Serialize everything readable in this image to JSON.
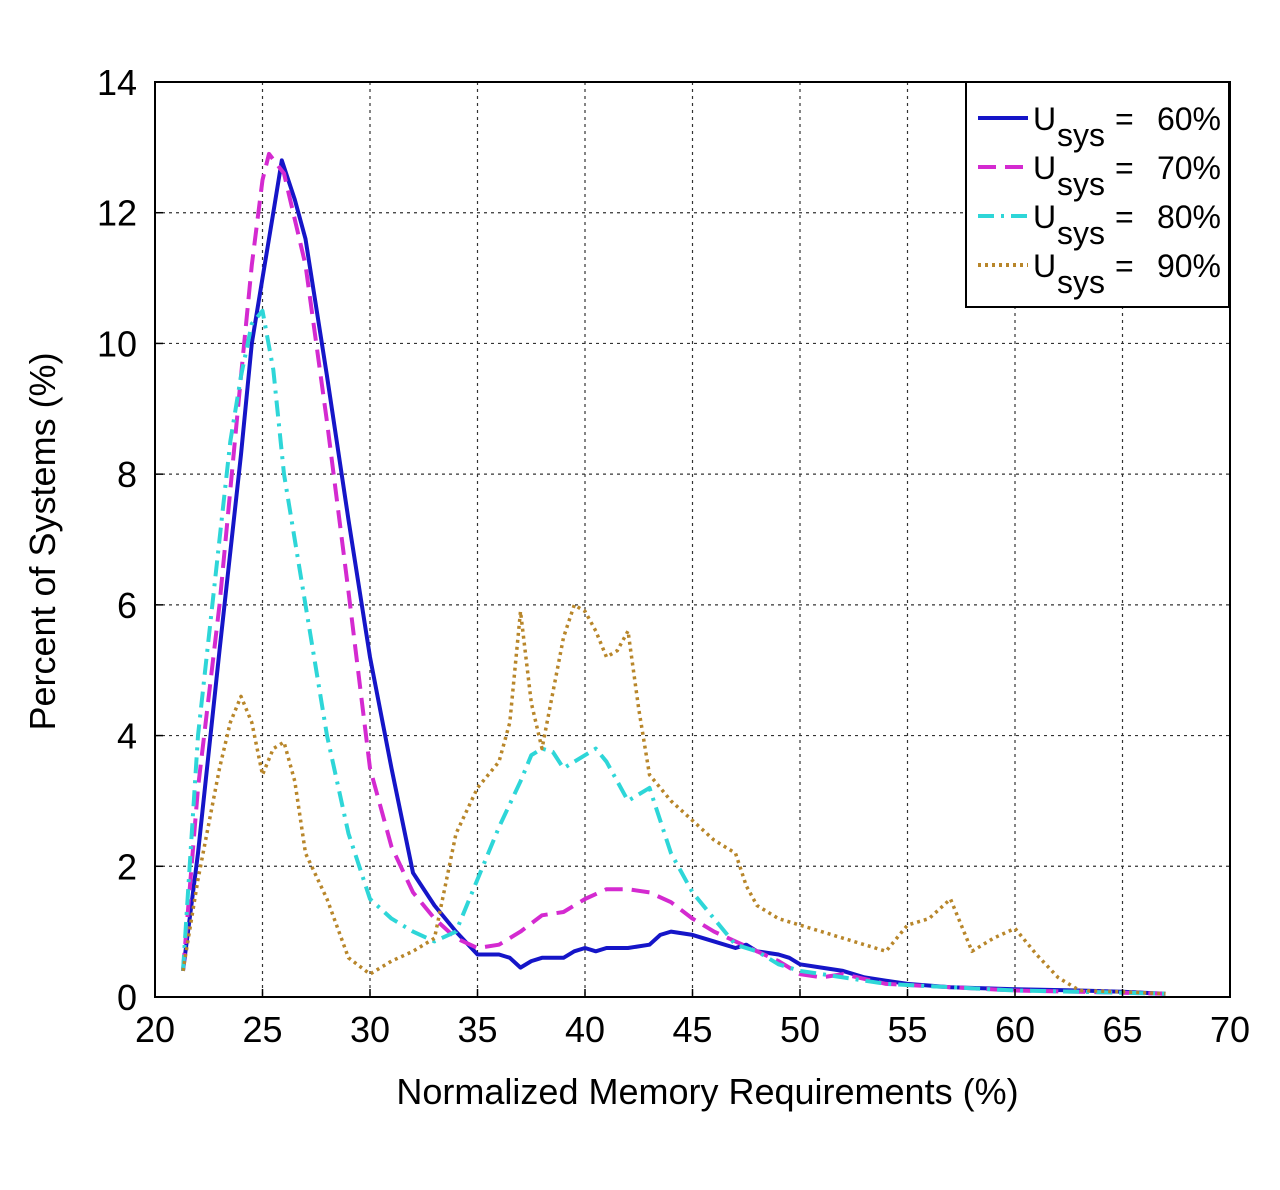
{
  "chart_data": {
    "type": "line",
    "title": "",
    "xlabel": "Normalized Memory Requirements (%)",
    "ylabel": "Percent of Systems (%)",
    "xlim": [
      20,
      70
    ],
    "ylim": [
      0,
      14
    ],
    "xticks": [
      20,
      25,
      30,
      35,
      40,
      45,
      50,
      55,
      60,
      65,
      70
    ],
    "yticks": [
      0,
      2,
      4,
      6,
      8,
      10,
      12,
      14
    ],
    "grid": true,
    "legend_position": "top-right",
    "series": [
      {
        "name": "60%",
        "legend_symbol": "U",
        "legend_subscript": "sys",
        "legend_eq": "=",
        "color": "#1515c8",
        "style": "solid",
        "x": [
          21.3,
          22.0,
          23.0,
          24.0,
          24.5,
          25.0,
          25.5,
          25.9,
          26.5,
          27.0,
          28.0,
          29.0,
          30.0,
          31.0,
          32.0,
          32.2,
          33.0,
          34.0,
          35.0,
          36.0,
          36.5,
          37.0,
          37.5,
          38.0,
          39.0,
          39.5,
          40.0,
          40.5,
          41.0,
          41.5,
          42.0,
          43.0,
          43.5,
          44.0,
          45.0,
          46.0,
          47.0,
          47.5,
          48.0,
          49.0,
          49.5,
          50.0,
          51.0,
          52.0,
          53.0,
          54.0,
          55.0,
          57.0,
          60.0,
          63.0,
          65.0,
          67.0
        ],
        "y": [
          0.4,
          2.2,
          5.3,
          8.3,
          10.0,
          11.0,
          12.0,
          12.8,
          12.2,
          11.6,
          9.5,
          7.3,
          5.2,
          3.5,
          1.9,
          1.8,
          1.4,
          1.0,
          0.65,
          0.65,
          0.6,
          0.45,
          0.55,
          0.6,
          0.6,
          0.7,
          0.75,
          0.7,
          0.75,
          0.75,
          0.75,
          0.8,
          0.95,
          1.0,
          0.95,
          0.85,
          0.75,
          0.8,
          0.7,
          0.65,
          0.6,
          0.5,
          0.45,
          0.4,
          0.3,
          0.25,
          0.2,
          0.15,
          0.12,
          0.1,
          0.08,
          0.05
        ]
      },
      {
        "name": "70%",
        "legend_symbol": "U",
        "legend_subscript": "sys",
        "legend_eq": "=",
        "color": "#d42ad0",
        "style": "dashed",
        "x": [
          21.3,
          22.0,
          23.0,
          24.0,
          24.5,
          25.0,
          25.3,
          26.0,
          27.0,
          28.0,
          29.0,
          30.0,
          31.0,
          32.0,
          33.0,
          34.0,
          35.0,
          36.0,
          37.0,
          38.0,
          39.0,
          40.0,
          41.0,
          42.0,
          43.0,
          44.0,
          45.0,
          46.0,
          47.0,
          48.0,
          49.0,
          50.0,
          51.0,
          52.0,
          54.0,
          57.0,
          60.0,
          63.0,
          67.0
        ],
        "y": [
          0.4,
          3.2,
          6.0,
          9.5,
          11.2,
          12.5,
          12.9,
          12.6,
          11.2,
          8.8,
          6.2,
          3.5,
          2.3,
          1.6,
          1.2,
          0.9,
          0.75,
          0.8,
          1.0,
          1.25,
          1.3,
          1.5,
          1.65,
          1.65,
          1.6,
          1.45,
          1.2,
          1.0,
          0.85,
          0.7,
          0.55,
          0.35,
          0.3,
          0.35,
          0.2,
          0.15,
          0.1,
          0.08,
          0.05
        ]
      },
      {
        "name": "80%",
        "legend_symbol": "U",
        "legend_subscript": "sys",
        "legend_eq": "=",
        "color": "#2ed6d8",
        "style": "dashdot",
        "x": [
          21.3,
          22.0,
          23.0,
          23.5,
          24.0,
          24.5,
          25.0,
          25.5,
          26.0,
          27.0,
          28.0,
          29.0,
          30.0,
          31.0,
          32.0,
          33.0,
          34.0,
          35.0,
          36.0,
          37.0,
          37.5,
          38.0,
          38.5,
          39.0,
          40.0,
          40.5,
          41.0,
          42.0,
          43.0,
          44.0,
          45.0,
          46.0,
          47.0,
          48.0,
          49.0,
          50.0,
          51.0,
          52.0,
          54.0,
          57.0,
          60.0,
          63.0,
          67.0
        ],
        "y": [
          0.4,
          4.0,
          7.0,
          8.5,
          9.5,
          10.3,
          10.5,
          9.6,
          8.0,
          6.0,
          4.0,
          2.5,
          1.5,
          1.2,
          1.0,
          0.85,
          1.0,
          1.8,
          2.6,
          3.3,
          3.7,
          3.8,
          3.75,
          3.5,
          3.7,
          3.8,
          3.6,
          3.0,
          3.2,
          2.2,
          1.6,
          1.2,
          0.8,
          0.7,
          0.5,
          0.4,
          0.35,
          0.3,
          0.2,
          0.15,
          0.1,
          0.08,
          0.05
        ]
      },
      {
        "name": "90%",
        "legend_symbol": "U",
        "legend_subscript": "sys",
        "legend_eq": "=",
        "color": "#b8862a",
        "style": "dotted",
        "x": [
          21.3,
          22.0,
          23.0,
          23.5,
          24.0,
          24.5,
          25.0,
          25.5,
          26.0,
          26.5,
          27.0,
          28.0,
          29.0,
          30.0,
          31.0,
          32.0,
          33.0,
          34.0,
          35.0,
          36.0,
          36.5,
          37.0,
          37.5,
          38.0,
          39.0,
          39.5,
          40.0,
          40.5,
          41.0,
          41.5,
          42.0,
          42.5,
          43.0,
          44.0,
          45.0,
          46.0,
          47.0,
          47.5,
          48.0,
          49.0,
          50.0,
          51.0,
          52.0,
          53.0,
          54.0,
          55.0,
          56.0,
          57.0,
          58.0,
          59.0,
          60.0,
          61.0,
          62.0,
          63.0,
          65.0,
          67.0
        ],
        "y": [
          0.4,
          1.8,
          3.5,
          4.2,
          4.6,
          4.2,
          3.4,
          3.8,
          3.9,
          3.3,
          2.2,
          1.5,
          0.6,
          0.35,
          0.55,
          0.7,
          0.9,
          2.5,
          3.2,
          3.6,
          4.2,
          5.9,
          4.5,
          3.8,
          5.5,
          6.0,
          5.9,
          5.6,
          5.2,
          5.3,
          5.6,
          4.4,
          3.4,
          3.0,
          2.7,
          2.4,
          2.2,
          1.7,
          1.4,
          1.2,
          1.1,
          1.0,
          0.9,
          0.8,
          0.7,
          1.1,
          1.2,
          1.5,
          0.7,
          0.9,
          1.05,
          0.65,
          0.3,
          0.1,
          0.08,
          0.05
        ]
      }
    ]
  }
}
